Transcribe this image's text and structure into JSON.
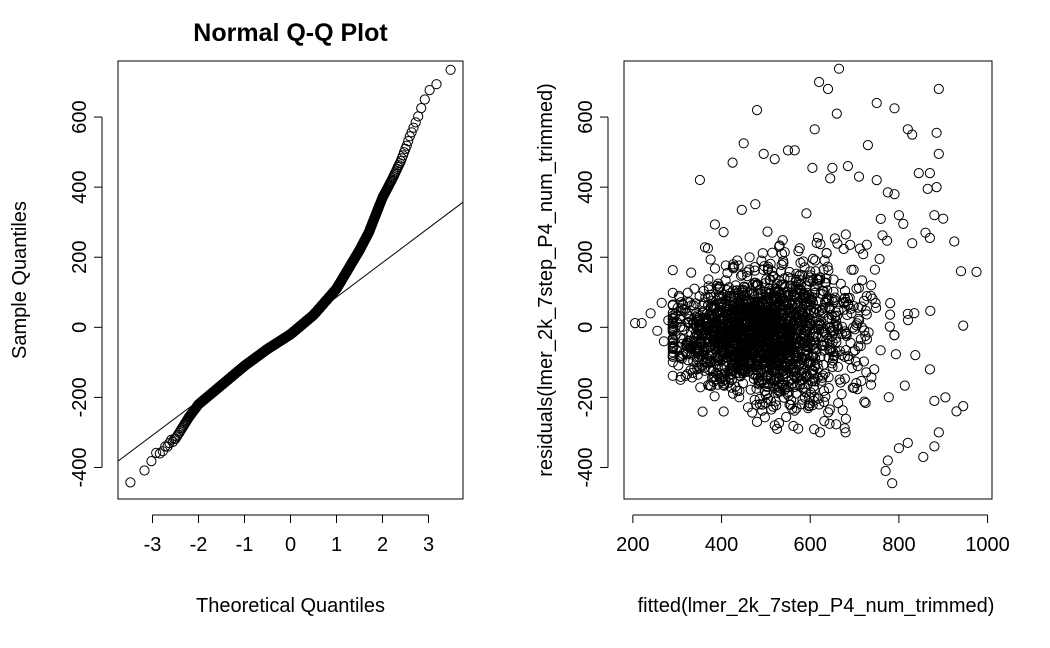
{
  "chart_data": [
    {
      "type": "scatter",
      "title": "Normal Q-Q Plot",
      "xlabel": "Theoretical Quantiles",
      "ylabel": "Sample Quantiles",
      "xlim": [
        -3.75,
        3.75
      ],
      "ylim": [
        -490,
        760
      ],
      "x_ticks": [
        -3,
        -2,
        -1,
        0,
        1,
        2,
        3
      ],
      "x_tick_labels": [
        "-3",
        "-2",
        "-1",
        "0",
        "1",
        "2",
        "3"
      ],
      "y_ticks": [
        -400,
        -200,
        0,
        200,
        400,
        600
      ],
      "y_tick_labels": [
        "-400",
        "-200",
        "0",
        "200",
        "400",
        "600"
      ],
      "grid": false,
      "marker": "open-circle",
      "sample_size": 2000,
      "quantile_curve": [
        {
          "z": -3.54,
          "y": -448
        },
        {
          "z": -3.2,
          "y": -410
        },
        {
          "z": -3.0,
          "y": -375
        },
        {
          "z": -2.8,
          "y": -350
        },
        {
          "z": -2.5,
          "y": -318
        },
        {
          "z": -2.2,
          "y": -255
        },
        {
          "z": -2.0,
          "y": -220
        },
        {
          "z": -1.5,
          "y": -165
        },
        {
          "z": -1.0,
          "y": -110
        },
        {
          "z": -0.5,
          "y": -62
        },
        {
          "z": 0.0,
          "y": -20
        },
        {
          "z": 0.5,
          "y": 35
        },
        {
          "z": 1.0,
          "y": 110
        },
        {
          "z": 1.5,
          "y": 220
        },
        {
          "z": 1.7,
          "y": 270
        },
        {
          "z": 2.0,
          "y": 370
        },
        {
          "z": 2.2,
          "y": 420
        },
        {
          "z": 2.4,
          "y": 475
        },
        {
          "z": 2.6,
          "y": 545
        },
        {
          "z": 2.8,
          "y": 610
        },
        {
          "z": 3.0,
          "y": 680
        },
        {
          "z": 3.2,
          "y": 700
        },
        {
          "z": 3.54,
          "y": 738
        }
      ],
      "reference_line": {
        "x": [
          -3.75,
          3.75
        ],
        "y": [
          -382,
          357
        ]
      }
    },
    {
      "type": "scatter",
      "title": "",
      "xlabel": "fitted(lmer_2k_7step_P4_num_trimmed)",
      "ylabel": "residuals(lmer_2k_7step_P4_num_trimmed)",
      "xlim": [
        180,
        1010
      ],
      "ylim": [
        -490,
        760
      ],
      "x_ticks": [
        200,
        400,
        600,
        800,
        1000
      ],
      "x_tick_labels": [
        "200",
        "400",
        "600",
        "800",
        "1000"
      ],
      "y_ticks": [
        -400,
        -200,
        0,
        200,
        400,
        600
      ],
      "y_tick_labels": [
        "-400",
        "-200",
        "0",
        "200",
        "400",
        "600"
      ],
      "grid": false,
      "marker": "open-circle",
      "sample_size": 2000,
      "bulk_center": {
        "x": 480,
        "y": -30
      },
      "outlier_points": [
        {
          "x": 205,
          "y": 12
        },
        {
          "x": 220,
          "y": 12
        },
        {
          "x": 240,
          "y": 40
        },
        {
          "x": 255,
          "y": -10
        },
        {
          "x": 265,
          "y": 70
        },
        {
          "x": 270,
          "y": -40
        },
        {
          "x": 280,
          "y": 20
        },
        {
          "x": 975,
          "y": 158
        },
        {
          "x": 945,
          "y": 5
        },
        {
          "x": 945,
          "y": -225
        },
        {
          "x": 665,
          "y": 738
        },
        {
          "x": 620,
          "y": 700
        },
        {
          "x": 640,
          "y": 680
        },
        {
          "x": 890,
          "y": 680
        },
        {
          "x": 750,
          "y": 640
        },
        {
          "x": 790,
          "y": 625
        },
        {
          "x": 480,
          "y": 620
        },
        {
          "x": 660,
          "y": 610
        },
        {
          "x": 610,
          "y": 565
        },
        {
          "x": 820,
          "y": 565
        },
        {
          "x": 830,
          "y": 550
        },
        {
          "x": 885,
          "y": 555
        },
        {
          "x": 450,
          "y": 525
        },
        {
          "x": 730,
          "y": 520
        },
        {
          "x": 550,
          "y": 505
        },
        {
          "x": 565,
          "y": 505
        },
        {
          "x": 495,
          "y": 495
        },
        {
          "x": 520,
          "y": 480
        },
        {
          "x": 890,
          "y": 495
        },
        {
          "x": 425,
          "y": 470
        },
        {
          "x": 650,
          "y": 455
        },
        {
          "x": 685,
          "y": 460
        },
        {
          "x": 605,
          "y": 455
        },
        {
          "x": 845,
          "y": 440
        },
        {
          "x": 870,
          "y": 440
        },
        {
          "x": 710,
          "y": 430
        },
        {
          "x": 865,
          "y": 395
        },
        {
          "x": 885,
          "y": 400
        },
        {
          "x": 750,
          "y": 420
        },
        {
          "x": 645,
          "y": 425
        },
        {
          "x": 775,
          "y": 385
        },
        {
          "x": 790,
          "y": 380
        },
        {
          "x": 860,
          "y": 270
        },
        {
          "x": 880,
          "y": 320
        },
        {
          "x": 900,
          "y": 310
        },
        {
          "x": 940,
          "y": 160
        },
        {
          "x": 925,
          "y": 245
        },
        {
          "x": 870,
          "y": 255
        },
        {
          "x": 830,
          "y": 240
        },
        {
          "x": 810,
          "y": 295
        },
        {
          "x": 800,
          "y": 320
        },
        {
          "x": 870,
          "y": -120
        },
        {
          "x": 880,
          "y": -210
        },
        {
          "x": 905,
          "y": -200
        },
        {
          "x": 930,
          "y": -240
        },
        {
          "x": 890,
          "y": -300
        },
        {
          "x": 880,
          "y": -340
        },
        {
          "x": 855,
          "y": -370
        },
        {
          "x": 820,
          "y": -330
        },
        {
          "x": 800,
          "y": -345
        },
        {
          "x": 775,
          "y": -380
        },
        {
          "x": 770,
          "y": -410
        },
        {
          "x": 785,
          "y": -445
        },
        {
          "x": 480,
          "y": -270
        },
        {
          "x": 520,
          "y": -280
        },
        {
          "x": 525,
          "y": -290
        },
        {
          "x": 345,
          "y": -90
        },
        {
          "x": 335,
          "y": -130
        },
        {
          "x": 370,
          "y": -165
        }
      ]
    }
  ]
}
